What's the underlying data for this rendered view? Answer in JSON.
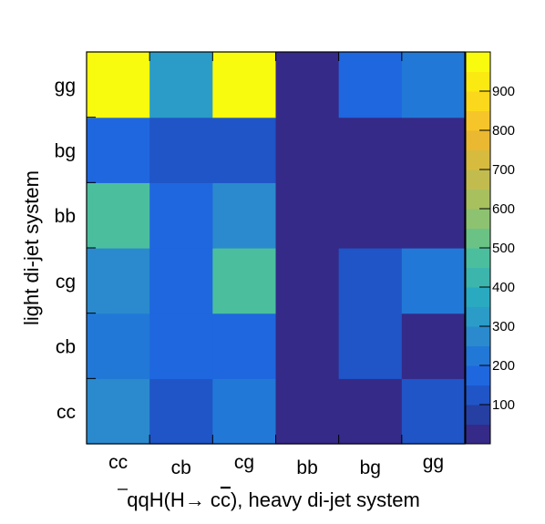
{
  "chart_data": {
    "type": "heatmap",
    "x_categories": [
      "cc",
      "cb",
      "cg",
      "bb",
      "bg",
      "gg"
    ],
    "y_categories": [
      "cc",
      "cb",
      "cg",
      "bb",
      "bg",
      "gg"
    ],
    "values": [
      [
        255,
        120,
        230,
        40,
        40,
        110
      ],
      [
        215,
        165,
        165,
        40,
        120,
        45
      ],
      [
        290,
        170,
        475,
        40,
        120,
        225
      ],
      [
        455,
        170,
        280,
        40,
        40,
        40
      ],
      [
        150,
        135,
        135,
        40,
        40,
        40
      ],
      [
        1000,
        320,
        1000,
        40,
        175,
        210
      ]
    ],
    "xlabel_prefix": "qq",
    "xlabel_mid": "H(H",
    "xlabel_arrow": "→",
    "xlabel_c1": " c",
    "xlabel_c2": "c",
    "xlabel_suffix": "), heavy di-jet system",
    "ylabel": "light di-jet system",
    "zlim": [
      0,
      1000
    ],
    "z_ticks": [
      100,
      200,
      300,
      400,
      500,
      600,
      700,
      800,
      900
    ],
    "z_tick_labels": [
      "100",
      "200",
      "300",
      "400",
      "500",
      "600",
      "700",
      "800",
      "900"
    ],
    "palette": [
      "#352a87",
      "#263fa2",
      "#1f55c7",
      "#1f67df",
      "#2278d6",
      "#2a8acd",
      "#2b9cc7",
      "#2aaac0",
      "#3cb6ad",
      "#4bbf9d",
      "#6bc285",
      "#8dc270",
      "#a9c05f",
      "#c2bc4f",
      "#d7bb3f",
      "#eab831",
      "#f6c52a",
      "#fbd81c",
      "#faea12",
      "#f9fb0e"
    ]
  }
}
